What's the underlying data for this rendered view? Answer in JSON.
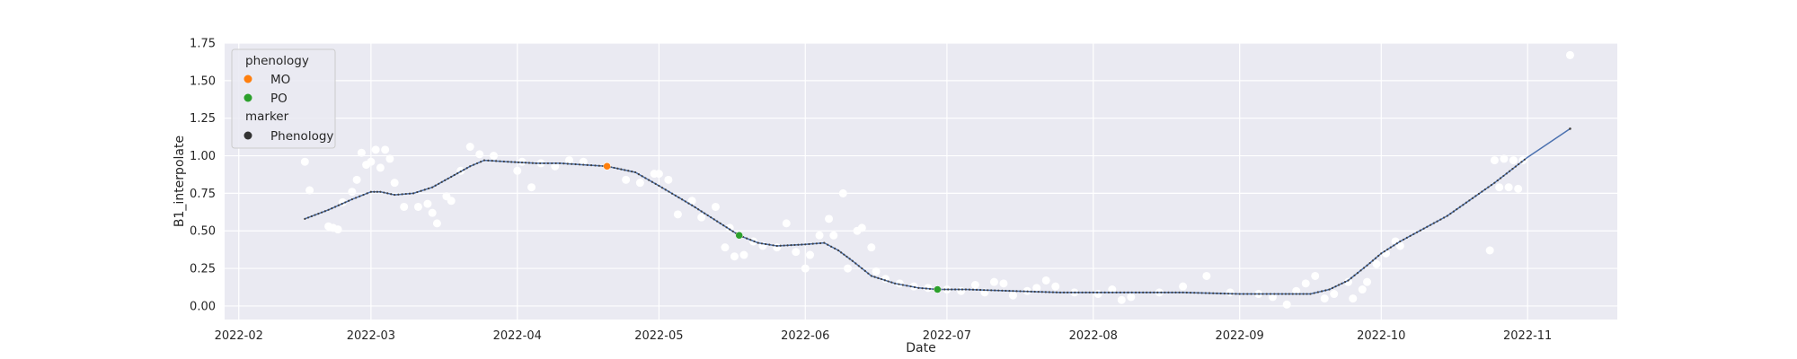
{
  "chart_data": {
    "type": "scatter",
    "title": "",
    "xlabel": "Date",
    "ylabel": "B1_interpolate",
    "xlim": [
      "2022-01-29",
      "2022-11-20"
    ],
    "ylim": [
      -0.09,
      1.75
    ],
    "xticks": [
      "2022-02",
      "2022-03",
      "2022-04",
      "2022-05",
      "2022-06",
      "2022-07",
      "2022-08",
      "2022-09",
      "2022-10",
      "2022-11"
    ],
    "yticks": [
      0.0,
      0.25,
      0.5,
      0.75,
      1.0,
      1.25,
      1.5,
      1.75
    ],
    "ytick_labels": [
      "0.00",
      "0.25",
      "0.50",
      "0.75",
      "1.00",
      "1.25",
      "1.50",
      "1.75"
    ],
    "grid": true,
    "legend_position": "top-left",
    "legend": {
      "title1": "phenology",
      "entries1": [
        {
          "label": "MO",
          "color": "#ff7f0e"
        },
        {
          "label": "PO",
          "color": "#2ca02c"
        }
      ],
      "title2": "marker",
      "entries2": [
        {
          "label": "Phenology",
          "color": "#333333"
        }
      ]
    },
    "colors": {
      "background": "#eaeaf2",
      "grid": "#ffffff",
      "observations": "#ffffff",
      "curve": "#4c72b0",
      "curve_markers": "#404040",
      "MO": "#ff7f0e",
      "PO": "#2ca02c"
    },
    "curve": [
      [
        "2022-02-15",
        0.58
      ],
      [
        "2022-02-20",
        0.64
      ],
      [
        "2022-02-25",
        0.71
      ],
      [
        "2022-03-01",
        0.76
      ],
      [
        "2022-03-03",
        0.76
      ],
      [
        "2022-03-06",
        0.74
      ],
      [
        "2022-03-10",
        0.75
      ],
      [
        "2022-03-14",
        0.79
      ],
      [
        "2022-03-18",
        0.86
      ],
      [
        "2022-03-22",
        0.93
      ],
      [
        "2022-03-25",
        0.97
      ],
      [
        "2022-03-30",
        0.96
      ],
      [
        "2022-04-05",
        0.95
      ],
      [
        "2022-04-10",
        0.95
      ],
      [
        "2022-04-15",
        0.94
      ],
      [
        "2022-04-20",
        0.93
      ],
      [
        "2022-04-26",
        0.89
      ],
      [
        "2022-05-01",
        0.8
      ],
      [
        "2022-05-08",
        0.67
      ],
      [
        "2022-05-14",
        0.55
      ],
      [
        "2022-05-18",
        0.47
      ],
      [
        "2022-05-22",
        0.42
      ],
      [
        "2022-05-26",
        0.4
      ],
      [
        "2022-06-01",
        0.41
      ],
      [
        "2022-06-05",
        0.42
      ],
      [
        "2022-06-08",
        0.37
      ],
      [
        "2022-06-11",
        0.3
      ],
      [
        "2022-06-15",
        0.2
      ],
      [
        "2022-06-20",
        0.15
      ],
      [
        "2022-06-25",
        0.12
      ],
      [
        "2022-06-29",
        0.11
      ],
      [
        "2022-07-05",
        0.11
      ],
      [
        "2022-07-15",
        0.1
      ],
      [
        "2022-07-25",
        0.09
      ],
      [
        "2022-08-01",
        0.09
      ],
      [
        "2022-08-10",
        0.09
      ],
      [
        "2022-08-20",
        0.09
      ],
      [
        "2022-09-01",
        0.08
      ],
      [
        "2022-09-10",
        0.08
      ],
      [
        "2022-09-16",
        0.08
      ],
      [
        "2022-09-20",
        0.11
      ],
      [
        "2022-09-24",
        0.17
      ],
      [
        "2022-09-28",
        0.27
      ],
      [
        "2022-10-01",
        0.35
      ],
      [
        "2022-10-05",
        0.43
      ],
      [
        "2022-10-15",
        0.6
      ],
      [
        "2022-10-25",
        0.82
      ],
      [
        "2022-11-01",
        0.99
      ],
      [
        "2022-11-10",
        1.18
      ]
    ],
    "observations": [
      [
        "2022-02-15",
        0.96
      ],
      [
        "2022-02-16",
        0.77
      ],
      [
        "2022-02-20",
        0.53
      ],
      [
        "2022-02-21",
        0.52
      ],
      [
        "2022-02-22",
        0.51
      ],
      [
        "2022-02-23",
        0.69
      ],
      [
        "2022-02-25",
        0.76
      ],
      [
        "2022-02-26",
        0.84
      ],
      [
        "2022-02-27",
        1.02
      ],
      [
        "2022-02-28",
        0.94
      ],
      [
        "2022-03-01",
        0.96
      ],
      [
        "2022-03-02",
        1.04
      ],
      [
        "2022-03-03",
        0.92
      ],
      [
        "2022-03-04",
        1.04
      ],
      [
        "2022-03-05",
        0.98
      ],
      [
        "2022-03-06",
        0.82
      ],
      [
        "2022-03-08",
        0.66
      ],
      [
        "2022-03-11",
        0.66
      ],
      [
        "2022-03-13",
        0.68
      ],
      [
        "2022-03-14",
        0.62
      ],
      [
        "2022-03-15",
        0.55
      ],
      [
        "2022-03-17",
        0.73
      ],
      [
        "2022-03-18",
        0.7
      ],
      [
        "2022-03-20",
        0.9
      ],
      [
        "2022-03-22",
        1.06
      ],
      [
        "2022-03-24",
        1.01
      ],
      [
        "2022-03-27",
        1.0
      ],
      [
        "2022-04-01",
        0.9
      ],
      [
        "2022-04-02",
        0.96
      ],
      [
        "2022-04-04",
        0.79
      ],
      [
        "2022-04-06",
        0.95
      ],
      [
        "2022-04-09",
        0.93
      ],
      [
        "2022-04-12",
        0.97
      ],
      [
        "2022-04-15",
        0.96
      ],
      [
        "2022-04-20",
        0.93
      ],
      [
        "2022-04-24",
        0.84
      ],
      [
        "2022-04-27",
        0.82
      ],
      [
        "2022-04-30",
        0.88
      ],
      [
        "2022-05-01",
        0.88
      ],
      [
        "2022-05-03",
        0.84
      ],
      [
        "2022-05-05",
        0.61
      ],
      [
        "2022-05-08",
        0.7
      ],
      [
        "2022-05-10",
        0.59
      ],
      [
        "2022-05-13",
        0.66
      ],
      [
        "2022-05-15",
        0.39
      ],
      [
        "2022-05-16",
        0.52
      ],
      [
        "2022-05-17",
        0.33
      ],
      [
        "2022-05-19",
        0.34
      ],
      [
        "2022-05-21",
        0.43
      ],
      [
        "2022-05-23",
        0.4
      ],
      [
        "2022-05-26",
        0.39
      ],
      [
        "2022-05-28",
        0.55
      ],
      [
        "2022-05-30",
        0.36
      ],
      [
        "2022-06-01",
        0.25
      ],
      [
        "2022-06-02",
        0.34
      ],
      [
        "2022-06-04",
        0.47
      ],
      [
        "2022-06-06",
        0.58
      ],
      [
        "2022-06-07",
        0.47
      ],
      [
        "2022-06-09",
        0.75
      ],
      [
        "2022-06-10",
        0.25
      ],
      [
        "2022-06-12",
        0.5
      ],
      [
        "2022-06-13",
        0.52
      ],
      [
        "2022-06-15",
        0.39
      ],
      [
        "2022-06-16",
        0.23
      ],
      [
        "2022-06-18",
        0.18
      ],
      [
        "2022-06-21",
        0.15
      ],
      [
        "2022-06-24",
        0.13
      ],
      [
        "2022-06-27",
        0.12
      ],
      [
        "2022-07-01",
        0.11
      ],
      [
        "2022-07-04",
        0.1
      ],
      [
        "2022-07-07",
        0.14
      ],
      [
        "2022-07-09",
        0.09
      ],
      [
        "2022-07-11",
        0.16
      ],
      [
        "2022-07-13",
        0.15
      ],
      [
        "2022-07-15",
        0.07
      ],
      [
        "2022-07-18",
        0.1
      ],
      [
        "2022-07-20",
        0.12
      ],
      [
        "2022-07-22",
        0.17
      ],
      [
        "2022-07-24",
        0.13
      ],
      [
        "2022-07-28",
        0.09
      ],
      [
        "2022-08-02",
        0.08
      ],
      [
        "2022-08-05",
        0.11
      ],
      [
        "2022-08-07",
        0.04
      ],
      [
        "2022-08-09",
        0.06
      ],
      [
        "2022-08-15",
        0.09
      ],
      [
        "2022-08-20",
        0.13
      ],
      [
        "2022-08-25",
        0.2
      ],
      [
        "2022-08-30",
        0.09
      ],
      [
        "2022-09-05",
        0.08
      ],
      [
        "2022-09-08",
        0.06
      ],
      [
        "2022-09-11",
        0.01
      ],
      [
        "2022-09-13",
        0.1
      ],
      [
        "2022-09-15",
        0.15
      ],
      [
        "2022-09-17",
        0.2
      ],
      [
        "2022-09-19",
        0.05
      ],
      [
        "2022-09-21",
        0.08
      ],
      [
        "2022-09-24",
        0.16
      ],
      [
        "2022-09-25",
        0.05
      ],
      [
        "2022-09-27",
        0.11
      ],
      [
        "2022-09-28",
        0.16
      ],
      [
        "2022-09-30",
        0.28
      ],
      [
        "2022-10-02",
        0.35
      ],
      [
        "2022-10-04",
        0.43
      ],
      [
        "2022-10-05",
        0.4
      ],
      [
        "2022-10-24",
        0.37
      ],
      [
        "2022-10-25",
        0.97
      ],
      [
        "2022-10-26",
        0.79
      ],
      [
        "2022-10-27",
        0.98
      ],
      [
        "2022-10-28",
        0.79
      ],
      [
        "2022-10-29",
        0.97
      ],
      [
        "2022-10-30",
        0.78
      ],
      [
        "2022-10-31",
        0.97
      ],
      [
        "2022-11-10",
        1.67
      ]
    ],
    "phenology_points": [
      {
        "label": "MO",
        "x": "2022-04-20",
        "y": 0.93
      },
      {
        "label": "PO",
        "x": "2022-05-18",
        "y": 0.47
      },
      {
        "label": "PO",
        "x": "2022-06-29",
        "y": 0.11
      }
    ]
  }
}
